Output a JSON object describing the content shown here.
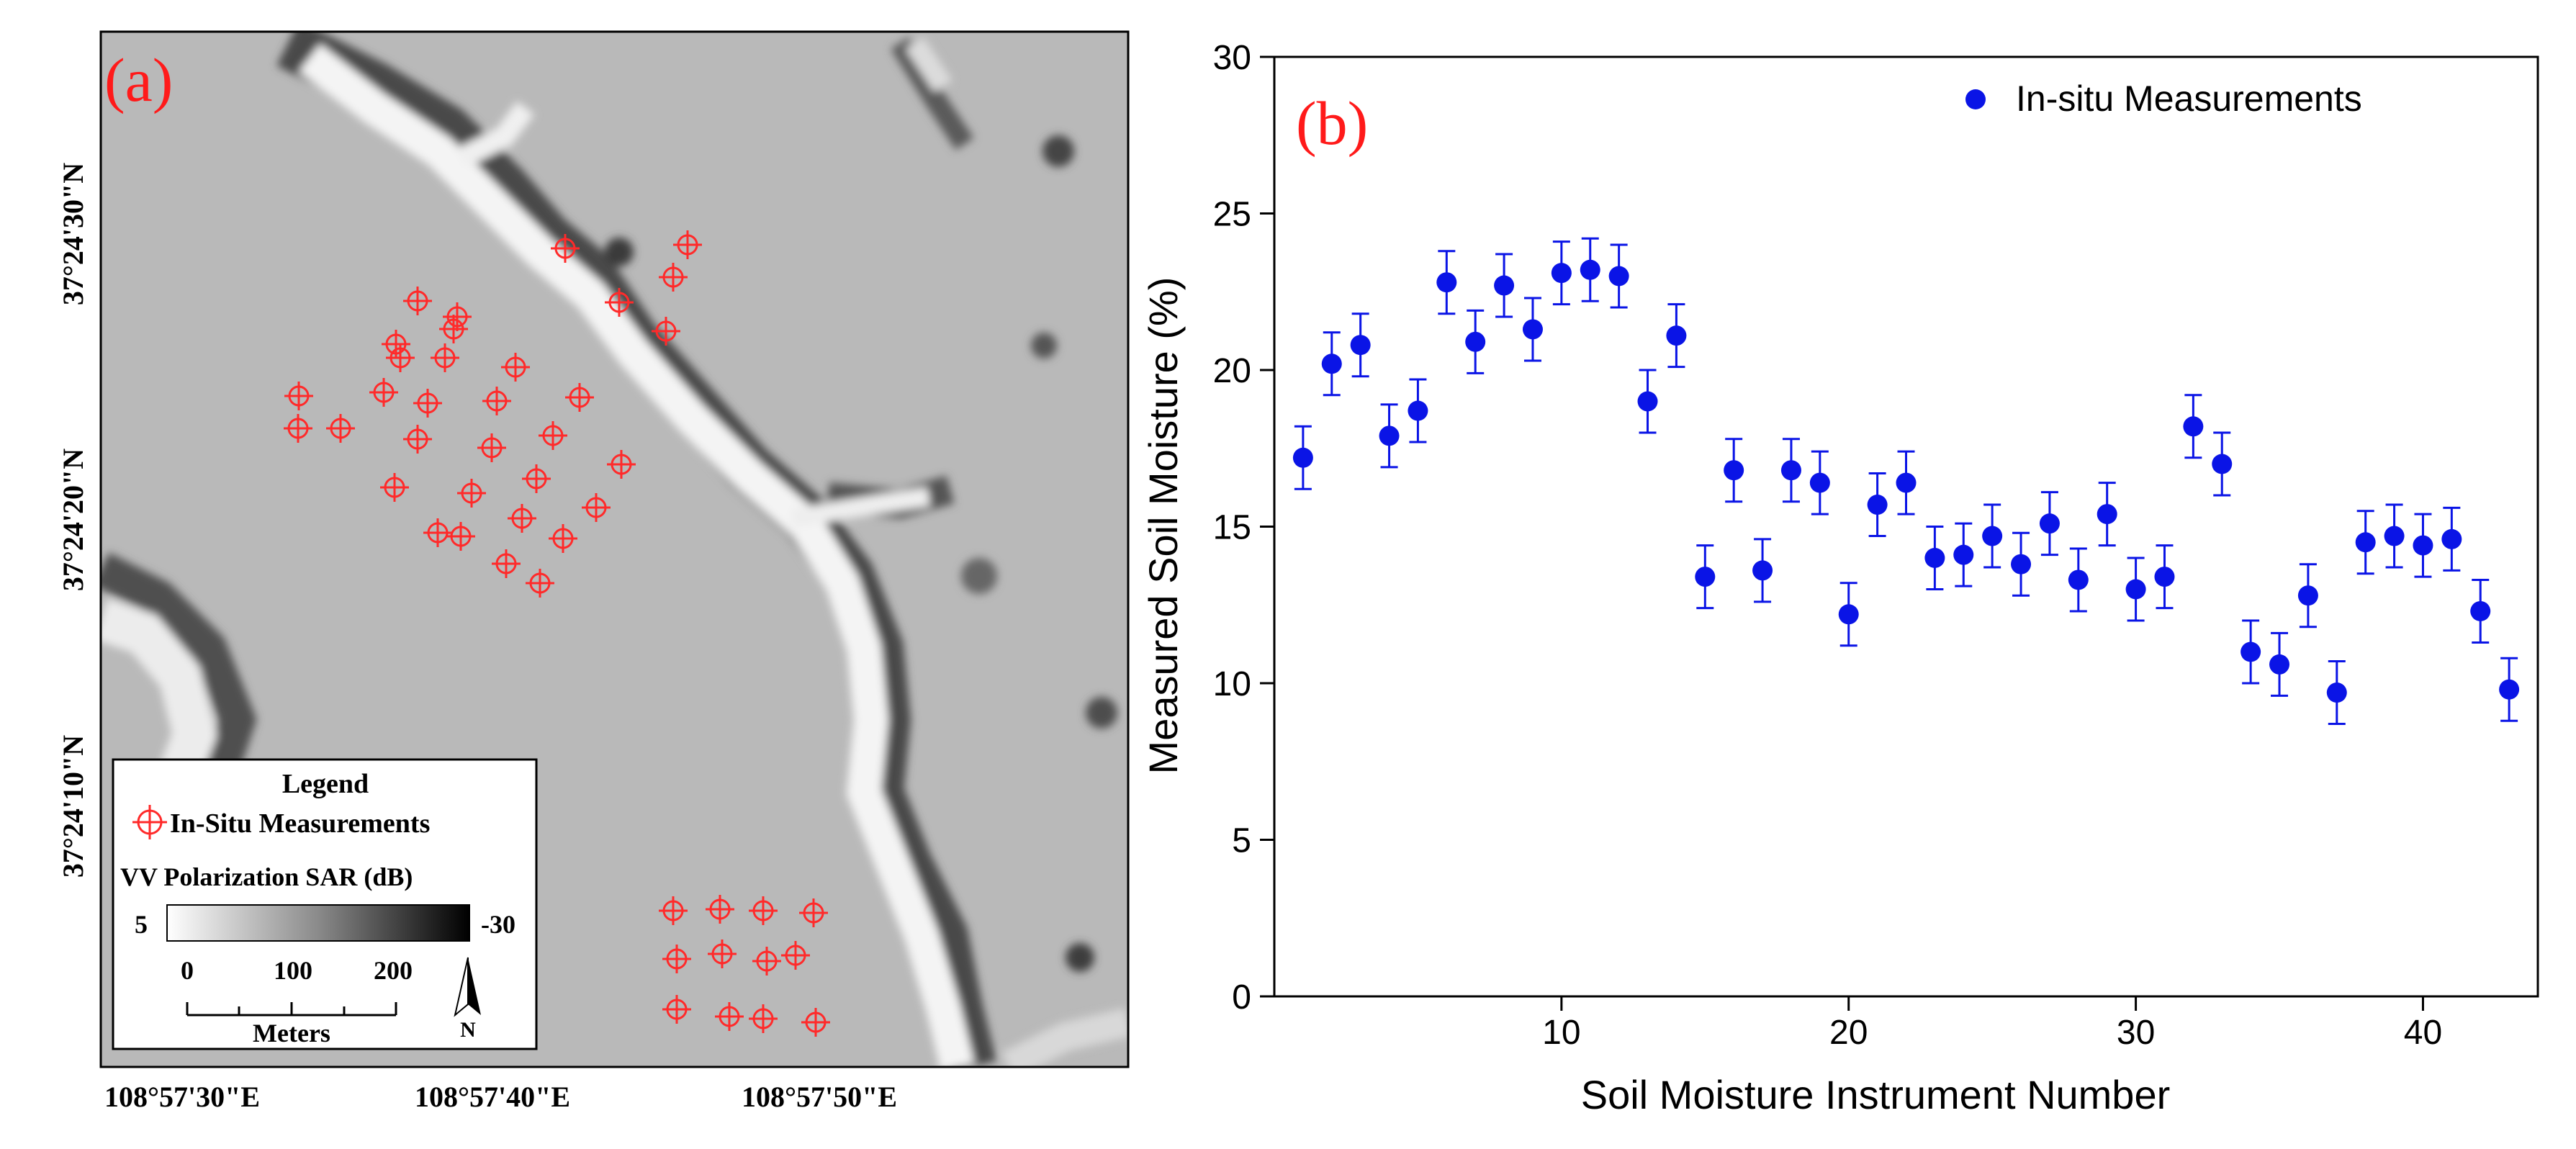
{
  "panel_a": {
    "label": "(a)",
    "lat_ticks": [
      "37°24'30\"N",
      "37°24'20\"N",
      "37°24'10\"N"
    ],
    "lon_ticks": [
      "108°57'30\"E",
      "108°57'40\"E",
      "108°57'50\"E"
    ],
    "legend": {
      "title": "Legend",
      "marker_label": "In-Situ Measurements",
      "colorbar_title": "VV Polarization SAR (dB)",
      "colorbar_min": "5",
      "colorbar_max": "-30",
      "scale_ticks": [
        "0",
        "100",
        "200"
      ],
      "scale_unit": "Meters",
      "north_label": "N"
    },
    "measurement_color": "#ff2a2a"
  },
  "chart_data": {
    "type": "scatter",
    "label": "(b)",
    "xlabel": "Soil Moisture Instrument Number",
    "ylabel": "Measured Soil Moisture (%)",
    "xlim": [
      0,
      44
    ],
    "ylim": [
      0,
      30
    ],
    "xticks": [
      10,
      20,
      30,
      40
    ],
    "yticks": [
      0,
      5,
      10,
      15,
      20,
      25,
      30
    ],
    "legend": "In-situ Measurements",
    "color": "#0a14e6",
    "error": 1.0,
    "x": [
      1,
      2,
      3,
      4,
      5,
      6,
      7,
      8,
      9,
      10,
      11,
      12,
      13,
      14,
      15,
      16,
      17,
      18,
      19,
      20,
      21,
      22,
      23,
      24,
      25,
      26,
      27,
      28,
      29,
      30,
      31,
      32,
      33,
      34,
      35,
      36,
      37,
      38,
      39,
      40,
      41,
      42,
      43
    ],
    "values": [
      17.2,
      20.2,
      20.8,
      17.9,
      18.7,
      22.8,
      20.9,
      22.7,
      21.3,
      23.1,
      23.2,
      23.0,
      19.0,
      21.1,
      13.4,
      16.8,
      13.6,
      16.8,
      16.4,
      12.2,
      15.7,
      16.4,
      14.0,
      14.1,
      14.7,
      13.8,
      15.1,
      13.3,
      15.4,
      13.0,
      13.4,
      18.2,
      17.0,
      11.0,
      10.6,
      12.8,
      9.7,
      14.5,
      14.7,
      14.4,
      14.6,
      12.3,
      9.8
    ]
  }
}
